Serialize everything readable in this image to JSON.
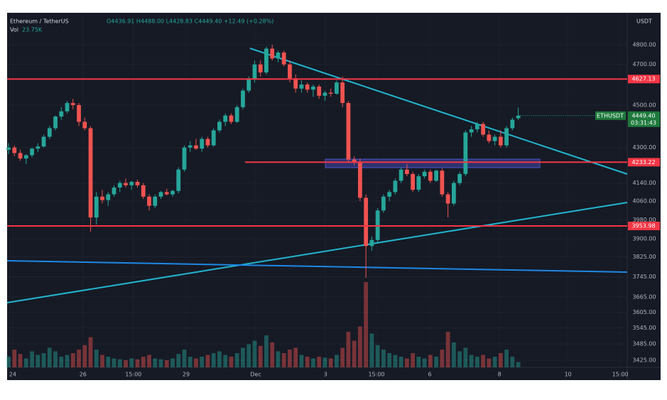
{
  "chart_data": {
    "type": "candlestick",
    "symbol": "Ethereum / TetherUS",
    "header_values": "O4436.91 H4488.00 L4428.83 C4449.40 +12.49 (+0.28%)",
    "volume_label": "Vol",
    "volume_value": "23.75K",
    "currency": "USDT",
    "symbol_tag": "ETHUSDT",
    "last_price_label": "4449.40",
    "countdown": "03:31:43",
    "log_scale": true,
    "grid": true,
    "up_color": "#26a69a",
    "down_color": "#ef5350",
    "level_color": "#f23645",
    "ylim": [
      3399,
      4967
    ],
    "yticks": [
      {
        "value": 3425,
        "label": "3425.00"
      },
      {
        "value": 3485,
        "label": "3485.00"
      },
      {
        "value": 3545,
        "label": "3545.00"
      },
      {
        "value": 3605,
        "label": "3605.00"
      },
      {
        "value": 3665,
        "label": "3665.00"
      },
      {
        "value": 3745,
        "label": "3745.00"
      },
      {
        "value": 3825,
        "label": "3825.00"
      },
      {
        "value": 3900,
        "label": "3900.00"
      },
      {
        "value": 3980,
        "label": "3980.00"
      },
      {
        "value": 4060,
        "label": "4060.00"
      },
      {
        "value": 4140,
        "label": "4140.00"
      },
      {
        "value": 4300,
        "label": "4300.00"
      },
      {
        "value": 4500,
        "label": "4500.00"
      },
      {
        "value": 4700,
        "label": "4700.00"
      },
      {
        "value": 4800,
        "label": "4800.00"
      }
    ],
    "xlim": [
      -0.25,
      105.6
    ],
    "xticks": [
      {
        "value": 0.7,
        "label": "24"
      },
      {
        "value": 12.7,
        "label": "26"
      },
      {
        "value": 21.3,
        "label": "15:00"
      },
      {
        "value": 30.3,
        "label": "29"
      },
      {
        "value": 42.2,
        "label": "Dec"
      },
      {
        "value": 54.1,
        "label": "3"
      },
      {
        "value": 62.8,
        "label": "15:00"
      },
      {
        "value": 71.9,
        "label": "6"
      },
      {
        "value": 83.8,
        "label": "8"
      },
      {
        "value": 95.5,
        "label": "10"
      },
      {
        "value": 104.4,
        "label": "15:00"
      }
    ],
    "levels": [
      {
        "value": 4627.13,
        "label": "4627.13"
      },
      {
        "value": 4233.22,
        "label": "4233.22"
      },
      {
        "value": 3953.98,
        "label": "3953.98"
      }
    ],
    "ohlc": [
      [
        4290,
        4320,
        4270,
        4300
      ],
      [
        4300,
        4310,
        4260,
        4275
      ],
      [
        4275,
        4290,
        4240,
        4250
      ],
      [
        4250,
        4270,
        4225,
        4265
      ],
      [
        4265,
        4300,
        4255,
        4295
      ],
      [
        4295,
        4320,
        4280,
        4305
      ],
      [
        4305,
        4360,
        4300,
        4350
      ],
      [
        4350,
        4400,
        4340,
        4390
      ],
      [
        4390,
        4450,
        4380,
        4445
      ],
      [
        4445,
        4490,
        4430,
        4470
      ],
      [
        4470,
        4520,
        4460,
        4510
      ],
      [
        4510,
        4530,
        4480,
        4500
      ],
      [
        4500,
        4510,
        4400,
        4420
      ],
      [
        4420,
        4440,
        4380,
        4390
      ],
      [
        4390,
        4400,
        3930,
        3990
      ],
      [
        3990,
        4100,
        3960,
        4080
      ],
      [
        4080,
        4110,
        4050,
        4065
      ],
      [
        4065,
        4100,
        4040,
        4090
      ],
      [
        4090,
        4130,
        4080,
        4120
      ],
      [
        4120,
        4150,
        4100,
        4140
      ],
      [
        4140,
        4160,
        4120,
        4130
      ],
      [
        4130,
        4150,
        4110,
        4145
      ],
      [
        4145,
        4155,
        4120,
        4130
      ],
      [
        4130,
        4140,
        4070,
        4080
      ],
      [
        4080,
        4090,
        4020,
        4040
      ],
      [
        4040,
        4090,
        4030,
        4080
      ],
      [
        4080,
        4105,
        4070,
        4100
      ],
      [
        4100,
        4115,
        4085,
        4090
      ],
      [
        4090,
        4110,
        4080,
        4105
      ],
      [
        4105,
        4210,
        4095,
        4200
      ],
      [
        4200,
        4310,
        4190,
        4300
      ],
      [
        4300,
        4330,
        4280,
        4310
      ],
      [
        4310,
        4340,
        4290,
        4295
      ],
      [
        4295,
        4350,
        4280,
        4340
      ],
      [
        4340,
        4350,
        4300,
        4310
      ],
      [
        4310,
        4390,
        4305,
        4380
      ],
      [
        4380,
        4430,
        4370,
        4420
      ],
      [
        4420,
        4460,
        4400,
        4450
      ],
      [
        4450,
        4460,
        4410,
        4420
      ],
      [
        4420,
        4500,
        4415,
        4490
      ],
      [
        4490,
        4580,
        4480,
        4570
      ],
      [
        4570,
        4640,
        4560,
        4630
      ],
      [
        4630,
        4720,
        4610,
        4700
      ],
      [
        4700,
        4720,
        4640,
        4660
      ],
      [
        4660,
        4790,
        4650,
        4780
      ],
      [
        4780,
        4800,
        4720,
        4730
      ],
      [
        4730,
        4770,
        4710,
        4760
      ],
      [
        4760,
        4770,
        4690,
        4700
      ],
      [
        4700,
        4720,
        4610,
        4630
      ],
      [
        4630,
        4650,
        4560,
        4580
      ],
      [
        4580,
        4620,
        4560,
        4600
      ],
      [
        4600,
        4610,
        4560,
        4575
      ],
      [
        4575,
        4600,
        4540,
        4590
      ],
      [
        4590,
        4600,
        4530,
        4545
      ],
      [
        4545,
        4570,
        4520,
        4560
      ],
      [
        4560,
        4580,
        4540,
        4555
      ],
      [
        4555,
        4620,
        4550,
        4610
      ],
      [
        4610,
        4640,
        4490,
        4510
      ],
      [
        4510,
        4520,
        4230,
        4245
      ],
      [
        4245,
        4260,
        4220,
        4235
      ],
      [
        4235,
        4250,
        4060,
        4075
      ],
      [
        4075,
        4090,
        3740,
        3870
      ],
      [
        3870,
        3910,
        3850,
        3895
      ],
      [
        3895,
        4030,
        3880,
        4020
      ],
      [
        4020,
        4090,
        4010,
        4080
      ],
      [
        4080,
        4110,
        4060,
        4100
      ],
      [
        4100,
        4160,
        4090,
        4150
      ],
      [
        4150,
        4210,
        4140,
        4200
      ],
      [
        4200,
        4225,
        4170,
        4180
      ],
      [
        4180,
        4190,
        4100,
        4110
      ],
      [
        4110,
        4180,
        4100,
        4170
      ],
      [
        4170,
        4200,
        4160,
        4190
      ],
      [
        4190,
        4200,
        4140,
        4150
      ],
      [
        4150,
        4200,
        4145,
        4195
      ],
      [
        4195,
        4205,
        4080,
        4090
      ],
      [
        4090,
        4100,
        3990,
        4050
      ],
      [
        4050,
        4150,
        4040,
        4140
      ],
      [
        4140,
        4190,
        4130,
        4180
      ],
      [
        4180,
        4380,
        4170,
        4370
      ],
      [
        4370,
        4400,
        4350,
        4385
      ],
      [
        4385,
        4420,
        4370,
        4410
      ],
      [
        4410,
        4420,
        4350,
        4360
      ],
      [
        4360,
        4380,
        4320,
        4330
      ],
      [
        4330,
        4360,
        4310,
        4350
      ],
      [
        4350,
        4380,
        4300,
        4310
      ],
      [
        4310,
        4400,
        4300,
        4390
      ],
      [
        4390,
        4440,
        4380,
        4430
      ],
      [
        4436.91,
        4488.0,
        4428.83,
        4449.4
      ]
    ],
    "volume_lim": [
      0,
      100
    ],
    "volume": [
      12,
      20,
      15,
      10,
      18,
      14,
      16,
      22,
      18,
      12,
      14,
      16,
      20,
      25,
      34,
      20,
      14,
      12,
      10,
      9,
      8,
      10,
      9,
      12,
      14,
      10,
      9,
      8,
      10,
      15,
      20,
      12,
      10,
      12,
      14,
      16,
      18,
      14,
      12,
      16,
      22,
      26,
      30,
      24,
      36,
      28,
      18,
      16,
      20,
      22,
      14,
      12,
      10,
      12,
      11,
      10,
      14,
      22,
      40,
      30,
      46,
      96,
      38,
      25,
      20,
      16,
      14,
      12,
      10,
      16,
      12,
      10,
      14,
      12,
      20,
      40,
      28,
      18,
      22,
      14,
      12,
      14,
      10,
      12,
      16,
      20,
      12,
      6
    ]
  }
}
